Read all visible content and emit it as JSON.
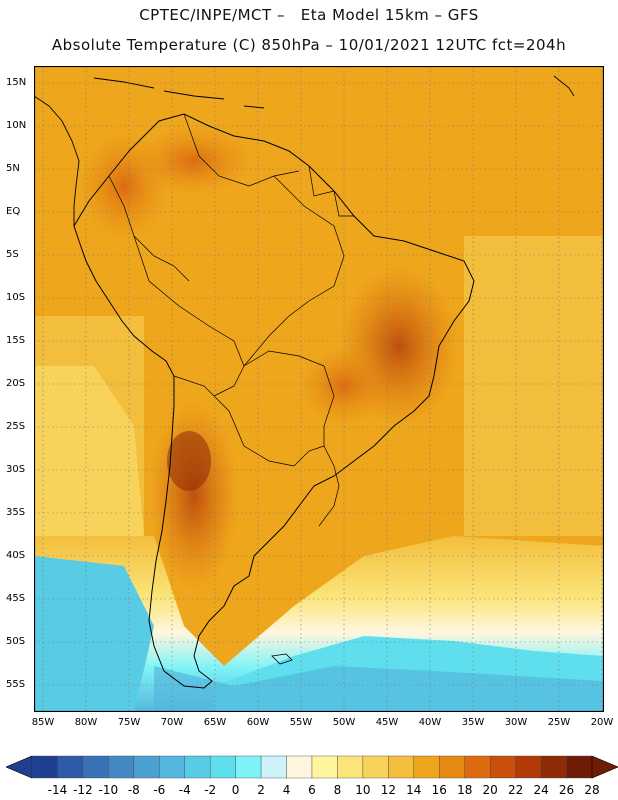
{
  "header": {
    "title": "CPTEC/INPE/MCT –   Eta Model 15km – GFS",
    "subtitle": "Absolute Temperature (C) 850hPa – 10/01/2021 12UTC fct=204h"
  },
  "map": {
    "lat_labels": [
      "15N",
      "10N",
      "5N",
      "EQ",
      "5S",
      "10S",
      "15S",
      "20S",
      "25S",
      "30S",
      "35S",
      "40S",
      "45S",
      "50S",
      "55S"
    ],
    "lon_labels": [
      "85W",
      "80W",
      "75W",
      "70W",
      "65W",
      "60W",
      "55W",
      "50W",
      "45W",
      "40W",
      "35W",
      "30W",
      "25W",
      "20W"
    ],
    "lat_range": [
      15,
      -55
    ],
    "lon_range": [
      -85,
      -20
    ]
  },
  "colorbar": {
    "labels": [
      "-14",
      "-12",
      "-10",
      "-8",
      "-6",
      "-4",
      "-2",
      "0",
      "2",
      "4",
      "6",
      "8",
      "10",
      "12",
      "14",
      "16",
      "18",
      "20",
      "22",
      "24",
      "26",
      "28"
    ],
    "colors": [
      "#1f3f93",
      "#2e5aa8",
      "#3b72b7",
      "#4489c4",
      "#4ba0d2",
      "#54b6dd",
      "#58cbe5",
      "#5fdfee",
      "#7ef3f7",
      "#cdf2fa",
      "#fff6e0",
      "#fff59e",
      "#fbe57a",
      "#f8d35c",
      "#f3be3b",
      "#eea61c",
      "#e68a14",
      "#dc6a0e",
      "#c94f0a",
      "#b23a08",
      "#8f2a07",
      "#6e1c06"
    ]
  }
}
